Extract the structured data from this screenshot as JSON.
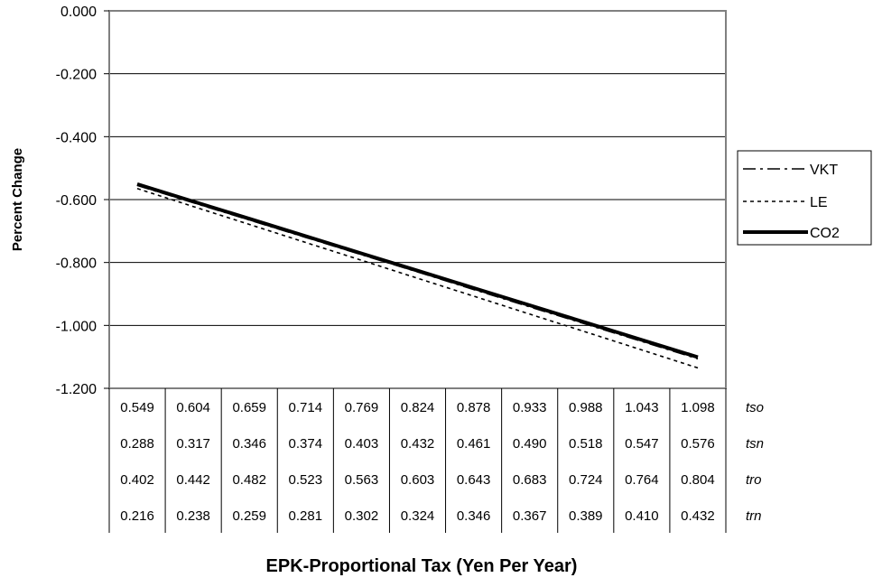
{
  "chart_data": {
    "type": "line",
    "ylabel": "Percent Change",
    "xlabel": "EPK-Proportional Tax (Yen Per Year)",
    "ylim": [
      -1.2,
      0.0
    ],
    "y_ticks": [
      "0.000",
      "-0.200",
      "-0.400",
      "-0.600",
      "-0.800",
      "-1.000",
      "-1.200"
    ],
    "grid": true,
    "legend_position": "right",
    "x_table": {
      "rows": [
        {
          "label": "tso",
          "values": [
            "0.549",
            "0.604",
            "0.659",
            "0.714",
            "0.769",
            "0.824",
            "0.878",
            "0.933",
            "0.988",
            "1.043",
            "1.098"
          ]
        },
        {
          "label": "tsn",
          "values": [
            "0.288",
            "0.317",
            "0.346",
            "0.374",
            "0.403",
            "0.432",
            "0.461",
            "0.490",
            "0.518",
            "0.547",
            "0.576"
          ]
        },
        {
          "label": "tro",
          "values": [
            "0.402",
            "0.442",
            "0.482",
            "0.523",
            "0.563",
            "0.603",
            "0.643",
            "0.683",
            "0.724",
            "0.764",
            "0.804"
          ]
        },
        {
          "label": "trn",
          "values": [
            "0.216",
            "0.238",
            "0.259",
            "0.281",
            "0.302",
            "0.324",
            "0.346",
            "0.367",
            "0.389",
            "0.410",
            "0.432"
          ]
        }
      ]
    },
    "series": [
      {
        "name": "VKT",
        "style": "dash-dot",
        "color": "#000000",
        "values": [
          -0.555,
          -0.61,
          -0.665,
          -0.72,
          -0.775,
          -0.83,
          -0.886,
          -0.941,
          -0.996,
          -1.051,
          -1.106
        ]
      },
      {
        "name": "LE",
        "style": "dotted",
        "color": "#000000",
        "values": [
          -0.565,
          -0.622,
          -0.679,
          -0.736,
          -0.793,
          -0.85,
          -0.907,
          -0.964,
          -1.021,
          -1.078,
          -1.135
        ]
      },
      {
        "name": "CO2",
        "style": "solid-thick",
        "color": "#000000",
        "values": [
          -0.551,
          -0.606,
          -0.661,
          -0.716,
          -0.771,
          -0.826,
          -0.881,
          -0.936,
          -0.991,
          -1.046,
          -1.101
        ]
      }
    ]
  }
}
